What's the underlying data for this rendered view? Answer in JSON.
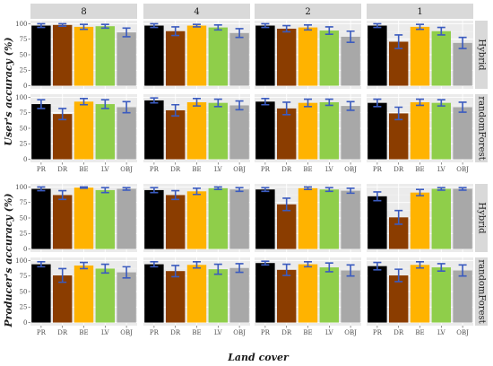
{
  "chart_data": {
    "type": "bar",
    "facet_columns": [
      "8",
      "4",
      "2",
      "1"
    ],
    "facet_rows": [
      "Hybrid",
      "randomForest",
      "Hybrid",
      "randomForest"
    ],
    "categories": [
      "PR",
      "DR",
      "BE",
      "LV",
      "OBJ"
    ],
    "colors": [
      "#000000",
      "#8b3d00",
      "#ffb300",
      "#8fce4a",
      "#a8a8a8"
    ],
    "error_bar_color": "#3b5bbf",
    "xlabel": "Land cover",
    "ylabels": [
      "User's accuracy (%)",
      "Producer's accuracy (%)"
    ],
    "ylim": [
      0,
      100
    ],
    "yticks": [
      "0",
      "25",
      "50",
      "75",
      "100"
    ],
    "panels": [
      {
        "metric": "User's accuracy (%)",
        "row": "Hybrid",
        "col": "8",
        "values": [
          97,
          98,
          95,
          96,
          86
        ],
        "errors": [
          3,
          2,
          4,
          3,
          7
        ]
      },
      {
        "metric": "User's accuracy (%)",
        "row": "Hybrid",
        "col": "4",
        "values": [
          97,
          88,
          97,
          94,
          85
        ],
        "errors": [
          3,
          7,
          2,
          4,
          7
        ]
      },
      {
        "metric": "User's accuracy (%)",
        "row": "Hybrid",
        "col": "2",
        "values": [
          97,
          92,
          94,
          89,
          79
        ],
        "errors": [
          3,
          5,
          4,
          6,
          9
        ]
      },
      {
        "metric": "User's accuracy (%)",
        "row": "Hybrid",
        "col": "1",
        "values": [
          97,
          71,
          95,
          88,
          69
        ],
        "errors": [
          3,
          11,
          4,
          6,
          9
        ]
      },
      {
        "metric": "User's accuracy (%)",
        "row": "randomForest",
        "col": "8",
        "values": [
          89,
          73,
          93,
          89,
          84
        ],
        "errors": [
          7,
          9,
          5,
          7,
          9
        ]
      },
      {
        "metric": "User's accuracy (%)",
        "row": "randomForest",
        "col": "4",
        "values": [
          95,
          79,
          92,
          91,
          87
        ],
        "errors": [
          4,
          9,
          6,
          6,
          7
        ]
      },
      {
        "metric": "User's accuracy (%)",
        "row": "randomForest",
        "col": "2",
        "values": [
          93,
          82,
          91,
          92,
          86
        ],
        "errors": [
          5,
          10,
          6,
          5,
          7
        ]
      },
      {
        "metric": "User's accuracy (%)",
        "row": "randomForest",
        "col": "1",
        "values": [
          91,
          74,
          92,
          91,
          84
        ],
        "errors": [
          6,
          10,
          5,
          5,
          8
        ]
      },
      {
        "metric": "Producer's accuracy (%)",
        "row": "Hybrid",
        "col": "8",
        "values": [
          97,
          87,
          99,
          95,
          97
        ],
        "errors": [
          3,
          7,
          1,
          4,
          2
        ]
      },
      {
        "metric": "Producer's accuracy (%)",
        "row": "Hybrid",
        "col": "4",
        "values": [
          95,
          87,
          93,
          98,
          96
        ],
        "errors": [
          4,
          7,
          5,
          2,
          3
        ]
      },
      {
        "metric": "Producer's accuracy (%)",
        "row": "Hybrid",
        "col": "2",
        "values": [
          96,
          72,
          98,
          96,
          94
        ],
        "errors": [
          3,
          10,
          2,
          3,
          4
        ]
      },
      {
        "metric": "Producer's accuracy (%)",
        "row": "Hybrid",
        "col": "1",
        "values": [
          85,
          51,
          91,
          97,
          97
        ],
        "errors": [
          7,
          11,
          5,
          2,
          2
        ]
      },
      {
        "metric": "Producer's accuracy (%)",
        "row": "randomForest",
        "col": "8",
        "values": [
          94,
          76,
          92,
          87,
          81
        ],
        "errors": [
          4,
          11,
          5,
          7,
          9
        ]
      },
      {
        "metric": "Producer's accuracy (%)",
        "row": "randomForest",
        "col": "4",
        "values": [
          94,
          83,
          93,
          86,
          88
        ],
        "errors": [
          4,
          9,
          5,
          8,
          7
        ]
      },
      {
        "metric": "Producer's accuracy (%)",
        "row": "randomForest",
        "col": "2",
        "values": [
          96,
          85,
          94,
          89,
          84
        ],
        "errors": [
          3,
          9,
          4,
          7,
          9
        ]
      },
      {
        "metric": "Producer's accuracy (%)",
        "row": "randomForest",
        "col": "1",
        "values": [
          91,
          76,
          93,
          89,
          84
        ],
        "errors": [
          6,
          10,
          5,
          6,
          9
        ]
      }
    ]
  }
}
